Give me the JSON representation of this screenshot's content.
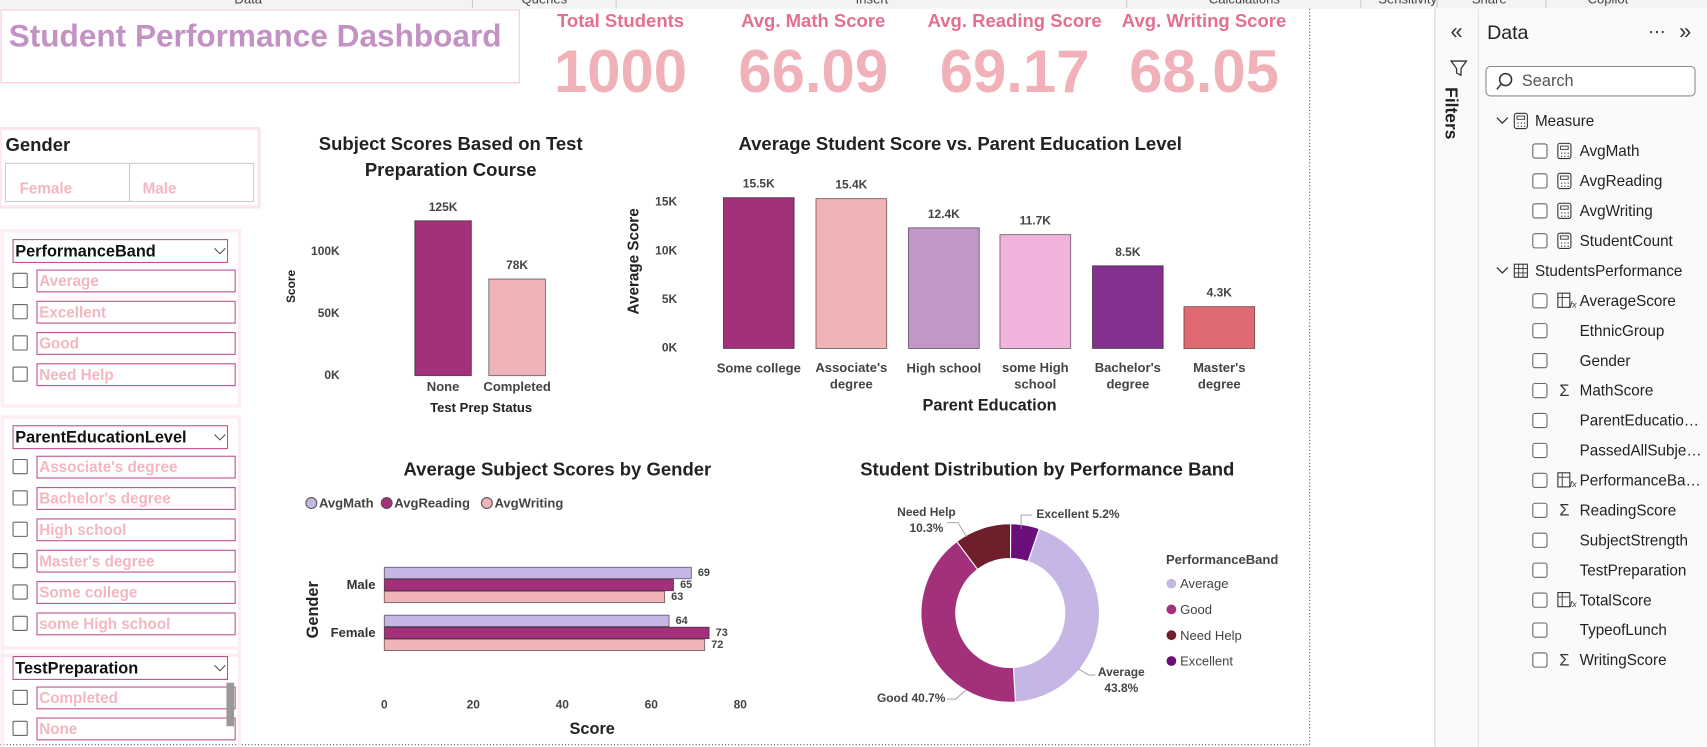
{
  "ribbon": [
    "Data",
    "Queries",
    "Insert",
    "Calculations",
    "Sensitivity",
    "Share",
    "Copilot"
  ],
  "title": "Student Performance Dashboard",
  "kpis": [
    {
      "label": "Total Students",
      "value": 1000
    },
    {
      "label": "Avg. Math Score",
      "value": 66.09
    },
    {
      "label": "Avg. Reading Score",
      "value": 69.17
    },
    {
      "label": "Avg. Writing Score",
      "value": 68.05
    }
  ],
  "slicers": {
    "gender": {
      "title": "Gender",
      "items": [
        "Female",
        "Male"
      ]
    },
    "lists": [
      {
        "title": "PerformanceBand",
        "items": [
          "Average",
          "Excellent",
          "Good",
          "Need Help"
        ]
      },
      {
        "title": "ParentEducationLevel",
        "items": [
          "Associate's degree",
          "Bachelor's degree",
          "High school",
          "Master's degree",
          "Some college",
          "some High school"
        ]
      },
      {
        "title": "TestPreparation",
        "items": [
          "Completed",
          "None"
        ]
      }
    ]
  },
  "chart_data": [
    {
      "type": "bar",
      "title": "Subject Scores Based on Test Preparation Course",
      "x_label": "Test Prep Status",
      "y_label": "Score",
      "categories": [
        "None",
        "Completed"
      ],
      "values": [
        125000,
        78000
      ],
      "value_labels": [
        "125K",
        "78K"
      ],
      "colors": [
        "#a3307a",
        "#f0b3b8"
      ],
      "ylim": [
        0,
        130000
      ],
      "yticks": [
        {
          "value": 0,
          "label": "0K"
        },
        {
          "value": 50000,
          "label": "50K"
        },
        {
          "value": 100000,
          "label": "100K"
        }
      ]
    },
    {
      "type": "bar",
      "title": "Average Student Score vs. Parent Education Level",
      "x_label": "Parent Education",
      "y_label": "Average Score",
      "categories": [
        "Some college",
        "Associate's degree",
        "High school",
        "some High school",
        "Bachelor's degree",
        "Master's degree"
      ],
      "values": [
        15500,
        15400,
        12400,
        11700,
        8500,
        4300
      ],
      "value_labels": [
        "15.5K",
        "15.4K",
        "12.4K",
        "11.7K",
        "8.5K",
        "4.3K"
      ],
      "colors": [
        "#a3307a",
        "#f0b3b8",
        "#c396c8",
        "#f0b4dc",
        "#84308f",
        "#e06a74"
      ],
      "ylim": [
        0,
        16000
      ],
      "yticks": [
        {
          "value": 0,
          "label": "0K"
        },
        {
          "value": 5000,
          "label": "5K"
        },
        {
          "value": 10000,
          "label": "10K"
        },
        {
          "value": 15000,
          "label": "15K"
        }
      ]
    },
    {
      "type": "hbar",
      "title": "Average Subject Scores by Gender",
      "x_label": "Score",
      "y_label": "Gender",
      "categories": [
        "Male",
        "Female"
      ],
      "series": [
        {
          "name": "AvgMath",
          "color": "#c5b6e6",
          "values": [
            69,
            64
          ]
        },
        {
          "name": "AvgReading",
          "color": "#a3307a",
          "values": [
            65,
            73
          ]
        },
        {
          "name": "AvgWriting",
          "color": "#f0b3b8",
          "values": [
            63,
            72
          ]
        }
      ],
      "xlim": [
        0,
        80
      ],
      "xticks": [
        0,
        20,
        40,
        60,
        80
      ]
    },
    {
      "type": "donut",
      "title": "Student Distribution by Performance Band",
      "legend_title": "PerformanceBand",
      "categories": [
        "Average",
        "Good",
        "Need Help",
        "Excellent"
      ],
      "values": [
        43.8,
        40.7,
        10.3,
        5.2
      ],
      "value_labels": [
        "Average 43.8%",
        "Good 40.7%",
        "Need Help 10.3%",
        "Excellent 5.2%"
      ],
      "colors": [
        "#c5b6e6",
        "#a3307a",
        "#6e1f2a",
        "#6a0f7a"
      ]
    }
  ],
  "filters_pane": {
    "title": "Filters"
  },
  "data_pane": {
    "title": "Data",
    "search": "Search",
    "tables": [
      {
        "name": "Measure",
        "icon": "measure-table",
        "fields": [
          {
            "name": "AvgMath",
            "icon": "measure"
          },
          {
            "name": "AvgReading",
            "icon": "measure"
          },
          {
            "name": "AvgWriting",
            "icon": "measure"
          },
          {
            "name": "StudentCount",
            "icon": "measure"
          }
        ]
      },
      {
        "name": "StudentsPerformance",
        "icon": "table",
        "fields": [
          {
            "name": "AverageScore",
            "icon": "calc"
          },
          {
            "name": "EthnicGroup",
            "icon": "none"
          },
          {
            "name": "Gender",
            "icon": "none"
          },
          {
            "name": "MathScore",
            "icon": "sum"
          },
          {
            "name": "ParentEducatio…",
            "icon": "none"
          },
          {
            "name": "PassedAllSubje…",
            "icon": "none"
          },
          {
            "name": "PerformanceBa…",
            "icon": "calc"
          },
          {
            "name": "ReadingScore",
            "icon": "sum"
          },
          {
            "name": "SubjectStrength",
            "icon": "none"
          },
          {
            "name": "TestPreparation",
            "icon": "none"
          },
          {
            "name": "TotalScore",
            "icon": "calc"
          },
          {
            "name": "TypeofLunch",
            "icon": "none"
          },
          {
            "name": "WritingScore",
            "icon": "sum"
          }
        ]
      }
    ]
  }
}
